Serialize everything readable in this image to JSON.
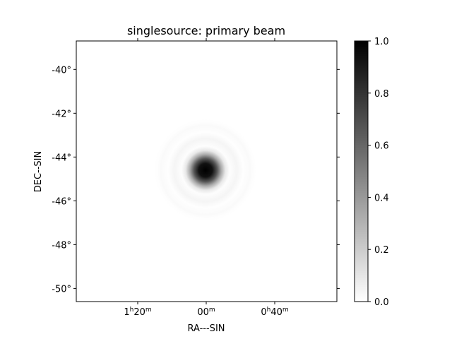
{
  "chart_data": {
    "type": "heatmap",
    "title": "singlesource: primary beam",
    "xlabel": "RA---SIN",
    "ylabel": "DEC--SIN",
    "x_ticks": [
      {
        "h": "1",
        "hu": "h",
        "m": "20",
        "mu": "m"
      },
      {
        "h": "",
        "hu": "",
        "m": "00",
        "mu": "m"
      },
      {
        "h": "0",
        "hu": "h",
        "m": "40",
        "mu": "m"
      }
    ],
    "y_ticks": [
      "-40°",
      "-42°",
      "-44°",
      "-46°",
      "-48°",
      "-50°"
    ],
    "y_tick_values": [
      -40,
      -42,
      -44,
      -46,
      -48,
      -50
    ],
    "ylim": [
      -50.6,
      -38.7
    ],
    "colorbar": {
      "ticks": [
        "0.0",
        "0.2",
        "0.4",
        "0.6",
        "0.8",
        "1.0"
      ],
      "tick_values": [
        0.0,
        0.2,
        0.4,
        0.6,
        0.8,
        1.0
      ],
      "range": [
        0,
        1
      ],
      "colormap": "greys",
      "colors": [
        "#ffffff",
        "#000000"
      ]
    },
    "beam": {
      "peak_value": 1.0,
      "center_dec": -44.7,
      "center_ra_tick": "00"
    }
  }
}
